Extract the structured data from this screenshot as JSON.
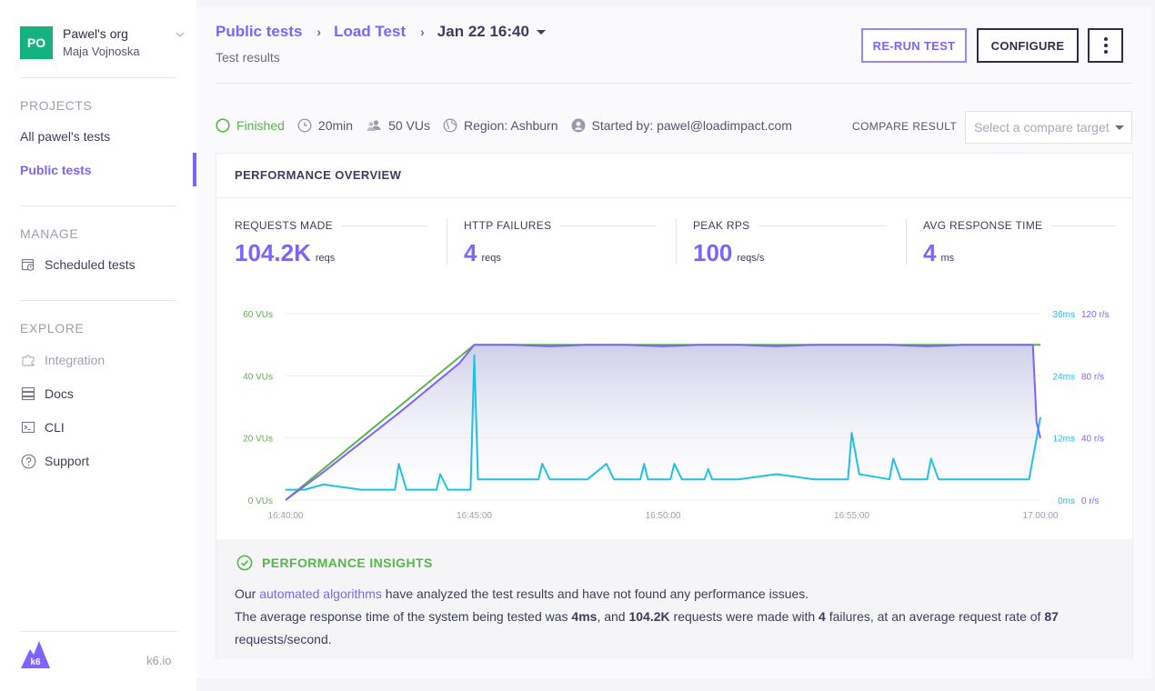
{
  "sidebar": {
    "org": {
      "initials": "PO",
      "name": "Pawel's org",
      "user": "Maja Vojnoska"
    },
    "projects_heading": "PROJECTS",
    "projects": [
      {
        "label": "All pawel's tests"
      },
      {
        "label": "Public tests"
      }
    ],
    "manage_heading": "MANAGE",
    "manage": [
      {
        "label": "Scheduled tests",
        "icon": "calendar-clock-icon"
      }
    ],
    "explore_heading": "EXPLORE",
    "explore": [
      {
        "label": "Integration",
        "icon": "puzzle-icon"
      },
      {
        "label": "Docs",
        "icon": "docs-icon"
      },
      {
        "label": "CLI",
        "icon": "terminal-icon"
      },
      {
        "label": "Support",
        "icon": "question-icon"
      }
    ],
    "logo_text": "k6",
    "site_link": "k6.io"
  },
  "header": {
    "breadcrumb": [
      "Public tests",
      "Load Test",
      "Jan 22 16:40"
    ],
    "subtitle": "Test results",
    "rerun_label": "RE-RUN TEST",
    "configure_label": "CONFIGURE"
  },
  "status": {
    "state": "Finished",
    "duration": "20min",
    "vus": "50 VUs",
    "region": "Region: Ashburn",
    "started_by": "Started by: pawel@loadimpact.com",
    "compare_label": "COMPARE RESULT",
    "compare_placeholder": "Select a compare target"
  },
  "overview": {
    "title": "PERFORMANCE OVERVIEW",
    "metrics": [
      {
        "label": "REQUESTS MADE",
        "value": "104.2K",
        "unit": "reqs"
      },
      {
        "label": "HTTP FAILURES",
        "value": "4",
        "unit": "reqs"
      },
      {
        "label": "PEAK RPS",
        "value": "100",
        "unit": "reqs/s"
      },
      {
        "label": "AVG RESPONSE TIME",
        "value": "4",
        "unit": "ms"
      }
    ]
  },
  "chart_data": {
    "type": "line",
    "x_ticks": [
      "16:40:00",
      "16:45:00",
      "16:50:00",
      "16:55:00",
      "17:00:00"
    ],
    "x_range_min": [
      0,
      20
    ],
    "left_axis": {
      "ticks": [
        "0 VUs",
        "20 VUs",
        "40 VUs",
        "60 VUs"
      ],
      "range": [
        0,
        60
      ],
      "color": "#56b847"
    },
    "right_axis_ms": {
      "ticks": [
        "0ms",
        "12ms",
        "24ms",
        "36ms"
      ],
      "range": [
        0,
        36
      ],
      "color": "#1fc1e6"
    },
    "right_axis_rps": {
      "ticks": [
        "0 r/s",
        "40 r/s",
        "80 r/s",
        "120 r/s"
      ],
      "range": [
        0,
        120
      ],
      "color": "#7d64ff"
    },
    "grid": true,
    "series": [
      {
        "color": "#56b847",
        "axis": "left",
        "points": [
          [
            0,
            0
          ],
          [
            5,
            50
          ],
          [
            20,
            50
          ]
        ]
      },
      {
        "color": "#7d64ff",
        "axis": "rps",
        "points": [
          [
            0,
            0
          ],
          [
            1,
            18
          ],
          [
            2,
            37
          ],
          [
            3,
            56
          ],
          [
            4,
            76
          ],
          [
            4.6,
            88
          ],
          [
            5,
            100
          ],
          [
            6,
            100
          ],
          [
            7,
            99
          ],
          [
            8,
            100
          ],
          [
            9,
            100
          ],
          [
            10,
            99
          ],
          [
            11,
            100
          ],
          [
            12,
            100
          ],
          [
            13,
            99
          ],
          [
            14,
            100
          ],
          [
            15,
            100
          ],
          [
            16,
            100
          ],
          [
            17,
            99
          ],
          [
            18,
            100
          ],
          [
            19.8,
            100
          ],
          [
            19.9,
            50
          ],
          [
            20,
            40
          ]
        ]
      },
      {
        "color": "#1fc1e6",
        "axis": "ms",
        "points": [
          [
            0,
            2
          ],
          [
            0.5,
            2
          ],
          [
            1,
            3
          ],
          [
            2,
            2
          ],
          [
            2.9,
            2
          ],
          [
            3,
            7
          ],
          [
            3.2,
            2
          ],
          [
            4,
            2
          ],
          [
            4.1,
            5
          ],
          [
            4.3,
            2
          ],
          [
            4.9,
            2
          ],
          [
            5,
            28
          ],
          [
            5.1,
            4
          ],
          [
            6,
            4
          ],
          [
            6.7,
            4
          ],
          [
            6.8,
            7
          ],
          [
            7,
            4
          ],
          [
            8,
            4
          ],
          [
            8.5,
            7
          ],
          [
            8.7,
            4
          ],
          [
            9.4,
            4
          ],
          [
            9.5,
            7
          ],
          [
            9.6,
            4
          ],
          [
            10.2,
            4
          ],
          [
            10.3,
            7
          ],
          [
            10.5,
            4
          ],
          [
            11.1,
            4
          ],
          [
            11.2,
            6
          ],
          [
            11.3,
            4
          ],
          [
            12,
            4
          ],
          [
            13,
            5
          ],
          [
            14,
            4
          ],
          [
            14.9,
            4
          ],
          [
            15,
            13
          ],
          [
            15.2,
            5
          ],
          [
            16,
            4
          ],
          [
            16.1,
            8
          ],
          [
            16.3,
            4
          ],
          [
            17,
            4
          ],
          [
            17.1,
            8
          ],
          [
            17.3,
            4
          ],
          [
            18,
            4
          ],
          [
            19,
            4
          ],
          [
            19.7,
            4
          ],
          [
            20,
            16
          ]
        ]
      }
    ]
  },
  "insights": {
    "title": "PERFORMANCE INSIGHTS",
    "line1_pre": "Our ",
    "line1_link": "automated algorithms",
    "line1_post": " have analyzed the test results and have not found any performance issues.",
    "line2_a": "The average response time of the system being tested was ",
    "line2_b": "4ms",
    "line2_c": ", and ",
    "line2_d": "104.2K",
    "line2_e": " requests were made with ",
    "line2_f": "4",
    "line2_g": " failures, at an average request rate of ",
    "line2_h": "87",
    "line2_i": " requests/second."
  }
}
